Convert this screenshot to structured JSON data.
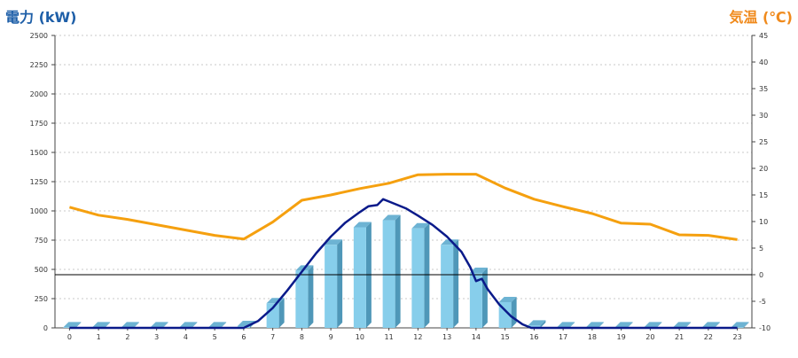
{
  "chart_data": {
    "type": "bar+line",
    "title": "",
    "left_axis_label": "電力 (kW)",
    "right_axis_label": "気温 (℃)",
    "colors": {
      "left_title": "#1e5fa8",
      "right_title": "#f08a1c",
      "bar_front": "#87ceeb",
      "bar_side": "#4f97b8",
      "bar_top": "#6db3d3",
      "power_line": "#0a1a8a",
      "temp_line": "#f5a00f",
      "zero_line": "#000000",
      "grid": "#c8c8c8"
    },
    "categories": [
      "0",
      "1",
      "2",
      "3",
      "4",
      "5",
      "6",
      "7",
      "8",
      "9",
      "10",
      "11",
      "12",
      "13",
      "14",
      "15",
      "16",
      "17",
      "18",
      "19",
      "20",
      "21",
      "22",
      "23"
    ],
    "left_axis": {
      "min": 0,
      "max": 2500,
      "ticks": [
        "0",
        "250",
        "500",
        "750",
        "1000",
        "1250",
        "1500",
        "1750",
        "2000",
        "2250",
        "2500"
      ]
    },
    "right_axis": {
      "min": -10,
      "max": 45,
      "ticks": [
        "-10",
        "-5",
        "0",
        "5",
        "10",
        "15",
        "20",
        "25",
        "30",
        "35",
        "40",
        "45"
      ]
    },
    "grid": true,
    "bars": {
      "axis": "left",
      "values": [
        5,
        5,
        5,
        5,
        5,
        5,
        15,
        210,
        490,
        710,
        860,
        920,
        850,
        710,
        470,
        220,
        20,
        5,
        5,
        5,
        5,
        5,
        5,
        5
      ]
    },
    "power_line": {
      "axis": "left",
      "points": [
        [
          0,
          0
        ],
        [
          6.0,
          0
        ],
        [
          6.5,
          60
        ],
        [
          7.0,
          170
        ],
        [
          7.5,
          320
        ],
        [
          8.0,
          480
        ],
        [
          8.5,
          640
        ],
        [
          9.0,
          780
        ],
        [
          9.5,
          900
        ],
        [
          10.0,
          990
        ],
        [
          10.3,
          1040
        ],
        [
          10.6,
          1050
        ],
        [
          10.8,
          1100
        ],
        [
          11.0,
          1080
        ],
        [
          11.3,
          1050
        ],
        [
          11.6,
          1020
        ],
        [
          12.0,
          960
        ],
        [
          12.5,
          880
        ],
        [
          13.0,
          780
        ],
        [
          13.5,
          650
        ],
        [
          13.8,
          520
        ],
        [
          14.0,
          400
        ],
        [
          14.2,
          420
        ],
        [
          14.4,
          330
        ],
        [
          14.8,
          200
        ],
        [
          15.2,
          100
        ],
        [
          15.6,
          30
        ],
        [
          15.9,
          0
        ],
        [
          23,
          0
        ]
      ]
    },
    "temperature": {
      "axis": "right",
      "values": [
        12.7,
        11.2,
        10.4,
        9.4,
        8.4,
        7.4,
        6.7,
        9.9,
        14.0,
        15.0,
        16.2,
        17.2,
        18.8,
        18.9,
        18.9,
        16.3,
        14.2,
        12.8,
        11.5,
        9.7,
        9.5,
        7.5,
        7.4,
        6.6
      ]
    }
  }
}
